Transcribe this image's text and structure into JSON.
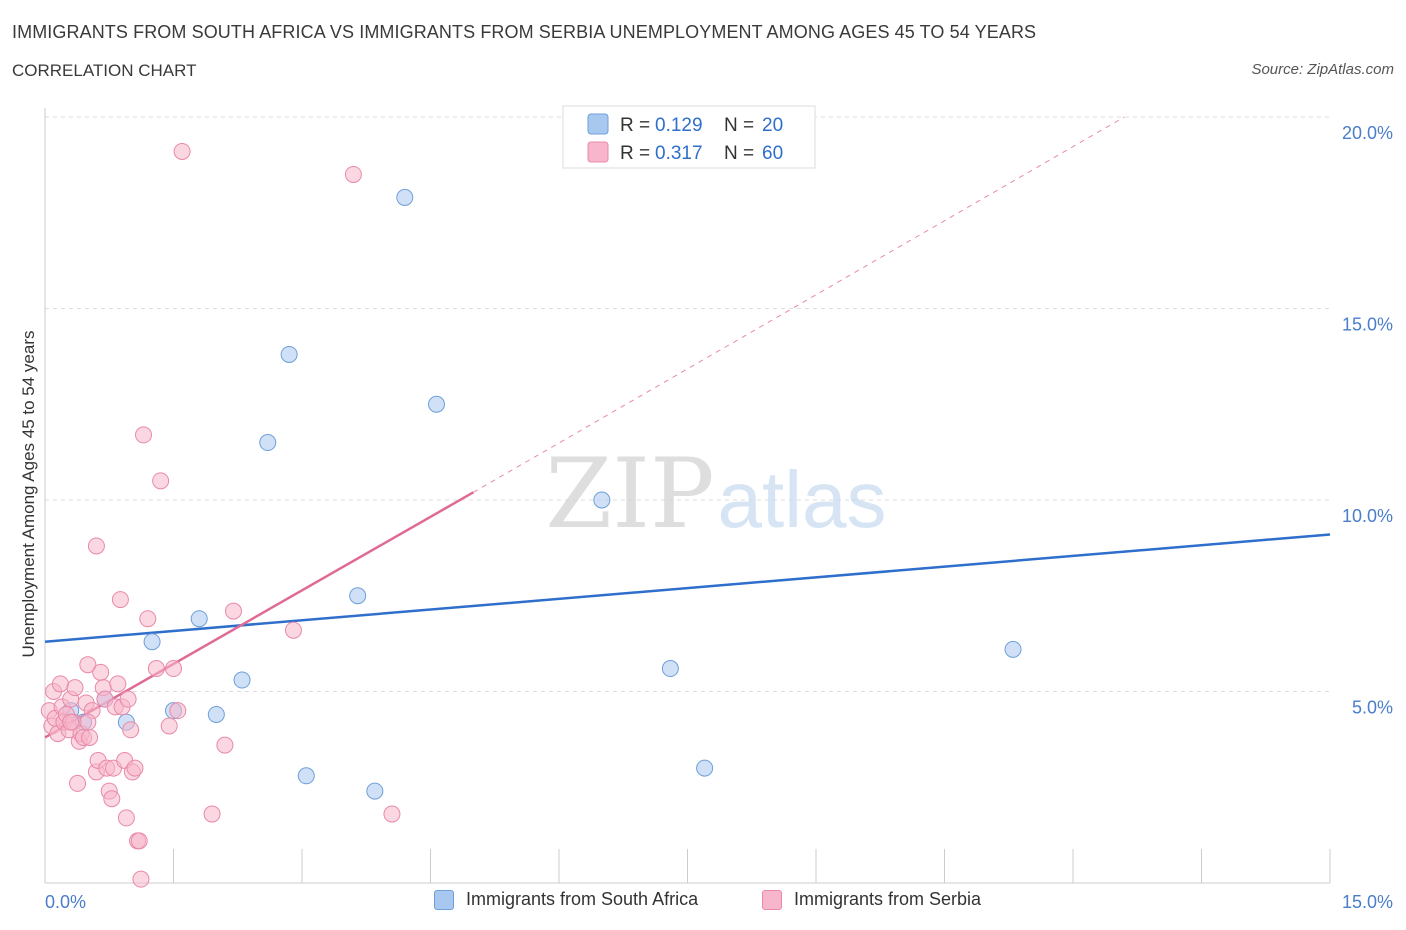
{
  "header": {
    "title": "IMMIGRANTS FROM SOUTH AFRICA VS IMMIGRANTS FROM SERBIA UNEMPLOYMENT AMONG AGES 45 TO 54 YEARS",
    "subtitle": "CORRELATION CHART",
    "source": "Source: ZipAtlas.com"
  },
  "watermark": {
    "zip": "ZIP",
    "atlas": "atlas"
  },
  "colors": {
    "south_africa_fill": "#a9c8f0",
    "south_africa_stroke": "#6e9fd8",
    "south_africa_line": "#2f6fcc",
    "serbia_fill": "#f7b6cb",
    "serbia_stroke": "#e889a9",
    "serbia_line": "#e06a96",
    "tick_label": "#4a7ecb"
  },
  "chart_data": {
    "type": "scatter",
    "title": "IMMIGRANTS FROM SOUTH AFRICA VS IMMIGRANTS FROM SERBIA UNEMPLOYMENT AMONG AGES 45 TO 54 YEARS",
    "xlabel": "",
    "ylabel": "Unemployment Among Ages 45 to 54 years",
    "xlim": [
      0,
      15
    ],
    "ylim": [
      0,
      20
    ],
    "x_tick_labels": [
      "0.0%",
      "15.0%"
    ],
    "y_ticks": [
      5,
      10,
      15,
      20
    ],
    "y_tick_labels": [
      "5.0%",
      "10.0%",
      "15.0%",
      "20.0%"
    ],
    "grid": true,
    "legend_position": "top-center",
    "stats_legend": [
      {
        "r_label": "R =",
        "r_value": "0.129",
        "n_label": "N =",
        "n_value": "20"
      },
      {
        "r_label": "R =",
        "r_value": "0.317",
        "n_label": "N =",
        "n_value": "60"
      }
    ],
    "series": [
      {
        "name": "Immigrants from South Africa",
        "points": [
          [
            0.3,
            4.5
          ],
          [
            0.7,
            4.8
          ],
          [
            0.95,
            4.2
          ],
          [
            1.25,
            6.3
          ],
          [
            1.5,
            4.5
          ],
          [
            1.8,
            6.9
          ],
          [
            2.0,
            4.4
          ],
          [
            2.3,
            5.3
          ],
          [
            2.6,
            11.5
          ],
          [
            2.85,
            13.8
          ],
          [
            3.05,
            2.8
          ],
          [
            3.65,
            7.5
          ],
          [
            3.85,
            2.4
          ],
          [
            4.2,
            17.9
          ],
          [
            4.57,
            12.5
          ],
          [
            6.5,
            10.0
          ],
          [
            7.3,
            5.6
          ],
          [
            7.7,
            3.0
          ],
          [
            11.3,
            6.1
          ],
          [
            0.45,
            4.2
          ]
        ],
        "trend": {
          "x_start": 0,
          "y_start": 6.3,
          "x_end": 15,
          "y_end": 9.1
        }
      },
      {
        "name": "Immigrants from Serbia",
        "points": [
          [
            0.05,
            4.5
          ],
          [
            0.08,
            4.1
          ],
          [
            0.1,
            5.0
          ],
          [
            0.12,
            4.3
          ],
          [
            0.15,
            3.9
          ],
          [
            0.18,
            5.2
          ],
          [
            0.2,
            4.6
          ],
          [
            0.22,
            4.2
          ],
          [
            0.25,
            4.4
          ],
          [
            0.28,
            4.0
          ],
          [
            0.3,
            4.8
          ],
          [
            0.33,
            4.2
          ],
          [
            0.35,
            5.1
          ],
          [
            0.38,
            2.6
          ],
          [
            0.4,
            3.7
          ],
          [
            0.42,
            3.9
          ],
          [
            0.45,
            3.8
          ],
          [
            0.48,
            4.7
          ],
          [
            0.5,
            5.7
          ],
          [
            0.52,
            3.8
          ],
          [
            0.55,
            4.5
          ],
          [
            0.6,
            2.9
          ],
          [
            0.62,
            3.2
          ],
          [
            0.65,
            5.5
          ],
          [
            0.68,
            5.1
          ],
          [
            0.7,
            4.8
          ],
          [
            0.72,
            3.0
          ],
          [
            0.75,
            2.4
          ],
          [
            0.78,
            2.2
          ],
          [
            0.8,
            3.0
          ],
          [
            0.82,
            4.6
          ],
          [
            0.85,
            5.2
          ],
          [
            0.88,
            7.4
          ],
          [
            0.9,
            4.6
          ],
          [
            0.93,
            3.2
          ],
          [
            0.95,
            1.7
          ],
          [
            0.97,
            4.8
          ],
          [
            1.0,
            4.0
          ],
          [
            1.02,
            2.9
          ],
          [
            1.05,
            3.0
          ],
          [
            1.08,
            1.1
          ],
          [
            1.1,
            1.1
          ],
          [
            1.12,
            0.1
          ],
          [
            1.15,
            11.7
          ],
          [
            1.2,
            6.9
          ],
          [
            1.3,
            5.6
          ],
          [
            1.35,
            10.5
          ],
          [
            1.45,
            4.1
          ],
          [
            1.5,
            5.6
          ],
          [
            1.55,
            4.5
          ],
          [
            1.6,
            19.1
          ],
          [
            1.95,
            1.8
          ],
          [
            2.1,
            3.6
          ],
          [
            2.2,
            7.1
          ],
          [
            2.9,
            6.6
          ],
          [
            3.6,
            18.5
          ],
          [
            4.05,
            1.8
          ],
          [
            0.6,
            8.8
          ],
          [
            0.3,
            4.2
          ],
          [
            0.5,
            4.2
          ]
        ],
        "trend": {
          "x_start": 0,
          "y_start": 3.8,
          "x_end": 5.0,
          "y_end": 10.2
        },
        "trend_extension": {
          "x_start": 5.0,
          "y_start": 10.2,
          "x_end": 12.6,
          "y_end": 20.0
        }
      }
    ]
  }
}
